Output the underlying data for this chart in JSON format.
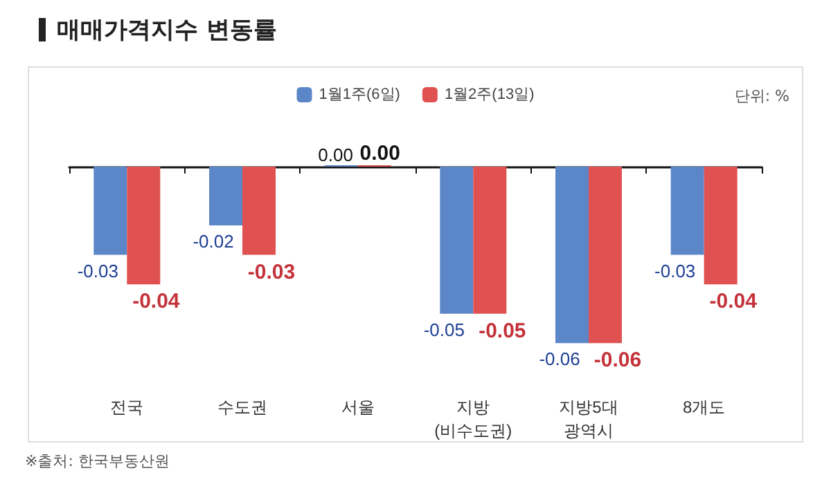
{
  "chart_data": {
    "type": "bar",
    "title": "매매가격지수 변동률",
    "categories": [
      "전국",
      "수도권",
      "서울",
      "지방\n(비수도권)",
      "지방5대\n광역시",
      "8개도"
    ],
    "series": [
      {
        "name": "1월1주(6일)",
        "color": "#5b86c8",
        "values": [
          -0.03,
          -0.02,
          0,
          -0.05,
          -0.06,
          -0.03
        ],
        "value_labels": [
          "-0.03",
          "-0.02",
          "0.00",
          "-0.05",
          "-0.06",
          "-0.03"
        ]
      },
      {
        "name": "1월2주(13일)",
        "color": "#e05252",
        "values": [
          -0.04,
          -0.03,
          0,
          -0.05,
          -0.06,
          -0.04
        ],
        "value_labels": [
          "-0.04",
          "-0.03",
          "0.00",
          "-0.05",
          "-0.06",
          "-0.04"
        ]
      }
    ],
    "legend": "top",
    "annotations": [
      "단위: %",
      "※출처: 한국부동산원"
    ]
  }
}
